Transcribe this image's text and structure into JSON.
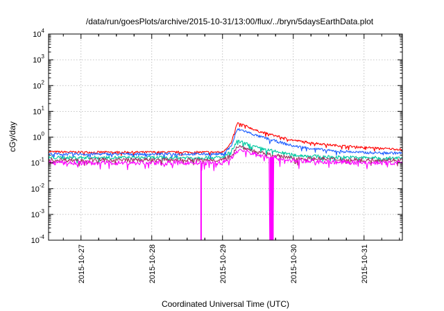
{
  "chart_data": {
    "type": "line",
    "title": "/data/run/goesPlots/archive/2015-10-31/13:00/flux/../bryn/5daysEarthData.plot",
    "xlabel": "Coordinated Universal Time (UTC)",
    "ylabel": "cGy/day",
    "y_scale": "log",
    "ylim": [
      0.0001,
      10000
    ],
    "xlim": [
      "2015-10-26 13:00",
      "2015-10-31 13:00"
    ],
    "y_ticks": [
      {
        "base": "10",
        "exp": "-4",
        "value": 0.0001
      },
      {
        "base": "10",
        "exp": "-3",
        "value": 0.001
      },
      {
        "base": "10",
        "exp": "-2",
        "value": 0.01
      },
      {
        "base": "10",
        "exp": "-1",
        "value": 0.1
      },
      {
        "base": "10",
        "exp": "0",
        "value": 1
      },
      {
        "base": "10",
        "exp": "1",
        "value": 10
      },
      {
        "base": "10",
        "exp": "2",
        "value": 100
      },
      {
        "base": "10",
        "exp": "3",
        "value": 1000
      },
      {
        "base": "10",
        "exp": "4",
        "value": 10000
      }
    ],
    "x_ticks": [
      {
        "label": "2015-10-27",
        "date": "2015-10-27 00:00"
      },
      {
        "label": "2015-10-28",
        "date": "2015-10-28 00:00"
      },
      {
        "label": "2015-10-29",
        "date": "2015-10-29 00:00"
      },
      {
        "label": "2015-10-30",
        "date": "2015-10-30 00:00"
      },
      {
        "label": "2015-10-31",
        "date": "2015-10-31 00:00"
      }
    ],
    "grid": true,
    "legend": "none",
    "x": [
      "2015-10-26 13:00",
      "2015-10-27 00:00",
      "2015-10-28 00:00",
      "2015-10-29 00:00",
      "2015-10-29 03:00",
      "2015-10-29 05:00",
      "2015-10-29 07:00",
      "2015-10-29 12:00",
      "2015-10-30 00:00",
      "2015-10-30 12:00",
      "2015-10-31 00:00",
      "2015-10-31 13:00"
    ],
    "series": [
      {
        "color": "#ff0000",
        "values": [
          0.27,
          0.26,
          0.26,
          0.26,
          0.6,
          3.5,
          3.0,
          1.7,
          0.75,
          0.5,
          0.4,
          0.33
        ]
      },
      {
        "color": "#1e5fff",
        "values": [
          0.22,
          0.22,
          0.22,
          0.22,
          0.45,
          2.0,
          1.8,
          1.1,
          0.45,
          0.3,
          0.25,
          0.24
        ]
      },
      {
        "color": "#00c8a0",
        "values": [
          0.16,
          0.16,
          0.16,
          0.16,
          0.28,
          0.7,
          0.6,
          0.38,
          0.2,
          0.17,
          0.16,
          0.15
        ]
      },
      {
        "color": "#a03060",
        "values": [
          0.13,
          0.13,
          0.13,
          0.13,
          0.2,
          0.45,
          0.4,
          0.25,
          0.15,
          0.14,
          0.13,
          0.13
        ]
      },
      {
        "color": "#ff00ff",
        "values": [
          0.1,
          0.1,
          0.1,
          0.1,
          0.15,
          0.3,
          0.3,
          0.2,
          0.12,
          0.11,
          0.1,
          0.1
        ],
        "dropouts": [
          {
            "from": "2015-10-28 16:30",
            "to": "2015-10-28 16:40"
          },
          {
            "from": "2015-10-29 16:00",
            "to": "2015-10-29 17:20"
          }
        ]
      }
    ]
  }
}
